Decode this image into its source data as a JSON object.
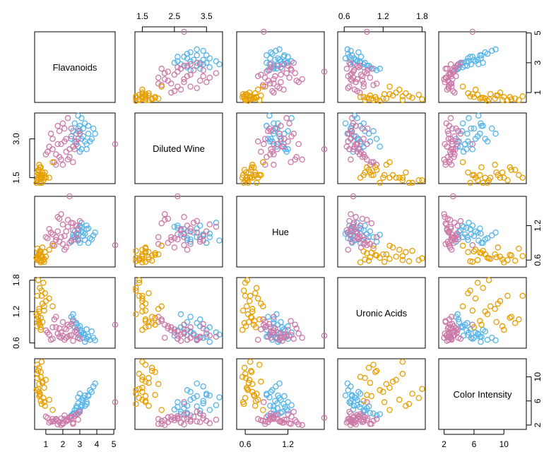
{
  "chart_data": {
    "type": "scatter",
    "variables": [
      "Flavanoids",
      "Diluted Wine",
      "Hue",
      "Uronic Acids",
      "Color Intensity"
    ],
    "ranges": [
      [
        0.34,
        5.08
      ],
      [
        1.27,
        4.0
      ],
      [
        0.48,
        1.71
      ],
      [
        0.5,
        1.85
      ],
      [
        1.28,
        13.0
      ]
    ],
    "ticks": [
      [
        1,
        2,
        3,
        4,
        5
      ],
      [
        1.5,
        2.5,
        3.5
      ],
      [
        0.6,
        1.2
      ],
      [
        0.6,
        1.2,
        1.8
      ],
      [
        2,
        6,
        10
      ]
    ],
    "tick_labels": [
      [
        "1",
        "2",
        "3",
        "4",
        "5"
      ],
      [
        "1.5",
        "2.5",
        "3.5"
      ],
      [
        "0.6",
        "1.2"
      ],
      [
        "0.6",
        "1.2",
        "1.8"
      ],
      [
        "2",
        "6",
        "10"
      ]
    ],
    "extra_labels": {
      "flav_right": [
        "1",
        "3",
        "5"
      ],
      "dilu_left": [
        "1.5",
        "3.0"
      ],
      "hue_right": [
        "0.6",
        "1.2"
      ]
    },
    "extra_ticks": {
      "flav_right": [
        1,
        3,
        5
      ],
      "dilu_left": [
        1.5,
        3.0
      ],
      "hue_right": [
        0.6,
        1.2
      ]
    },
    "series": [
      {
        "color": "#56B4E9",
        "values": [
          [
            2.9,
            3.4,
            1.05,
            0.7,
            5.6
          ],
          [
            3.1,
            3.0,
            1.1,
            0.8,
            6.2
          ],
          [
            3.3,
            2.9,
            0.95,
            0.75,
            5.2
          ],
          [
            2.7,
            3.6,
            1.0,
            0.9,
            4.5
          ],
          [
            3.5,
            3.2,
            1.15,
            0.72,
            6.8
          ],
          [
            2.8,
            2.8,
            1.05,
            0.95,
            4.8
          ],
          [
            3.0,
            3.5,
            0.9,
            0.85,
            7.2
          ],
          [
            3.4,
            2.6,
            1.2,
            0.68,
            5.8
          ],
          [
            2.6,
            3.3,
            1.0,
            1.05,
            3.9
          ],
          [
            3.2,
            3.1,
            1.08,
            0.78,
            6.5
          ],
          [
            3.6,
            2.9,
            0.98,
            0.66,
            7.8
          ],
          [
            2.9,
            2.7,
            1.12,
            0.9,
            4.2
          ],
          [
            3.8,
            3.4,
            1.03,
            0.7,
            8.4
          ],
          [
            3.1,
            3.8,
            1.25,
            0.8,
            5.3
          ],
          [
            2.5,
            3.0,
            0.92,
            1.1,
            3.6
          ],
          [
            3.3,
            3.6,
            1.06,
            0.62,
            6.9
          ],
          [
            2.8,
            3.2,
            1.0,
            0.98,
            5.1
          ],
          [
            3.0,
            2.5,
            1.18,
            0.74,
            4.6
          ],
          [
            3.7,
            3.0,
            0.96,
            0.82,
            7.5
          ],
          [
            2.7,
            2.9,
            1.1,
            1.0,
            4.0
          ],
          [
            3.2,
            3.4,
            1.02,
            0.7,
            6.0
          ],
          [
            3.4,
            2.8,
            1.14,
            0.86,
            5.5
          ],
          [
            2.9,
            3.9,
            0.94,
            0.76,
            6.6
          ],
          [
            3.9,
            3.2,
            1.08,
            0.65,
            8.9
          ],
          [
            3.0,
            3.3,
            1.2,
            0.92,
            4.4
          ],
          [
            2.6,
            2.7,
            1.04,
            1.15,
            3.8
          ],
          [
            3.5,
            3.5,
            0.9,
            0.72,
            7.0
          ],
          [
            3.1,
            2.6,
            1.16,
            0.84,
            5.0
          ]
        ]
      },
      {
        "color": "#CC79A7",
        "values": [
          [
            1.9,
            2.8,
            1.0,
            0.8,
            3.1
          ],
          [
            2.2,
            3.0,
            1.1,
            0.7,
            2.6
          ],
          [
            1.6,
            2.4,
            0.95,
            0.9,
            2.9
          ],
          [
            2.5,
            3.1,
            1.25,
            0.75,
            3.4
          ],
          [
            2.0,
            2.0,
            0.88,
            1.0,
            2.2
          ],
          [
            1.4,
            2.6,
            1.05,
            0.68,
            3.0
          ],
          [
            2.8,
            2.9,
            1.2,
            0.85,
            3.8
          ],
          [
            1.8,
            3.3,
            0.92,
            0.72,
            2.5
          ],
          [
            2.3,
            2.2,
            1.3,
            0.95,
            2.8
          ],
          [
            1.1,
            2.5,
            0.98,
            0.8,
            3.2
          ],
          [
            2.6,
            2.7,
            1.12,
            0.64,
            2.4
          ],
          [
            2.1,
            3.4,
            1.02,
            0.88,
            3.6
          ],
          [
            1.5,
            2.1,
            0.85,
            1.05,
            2.7
          ],
          [
            2.9,
            3.0,
            1.15,
            0.7,
            2.9
          ],
          [
            1.7,
            2.8,
            1.35,
            0.78,
            2.1
          ],
          [
            2.4,
            2.3,
            0.9,
            0.92,
            3.3
          ],
          [
            1.3,
            3.2,
            1.08,
            0.66,
            2.6
          ],
          [
            2.7,
            2.6,
            0.96,
            0.82,
            3.5
          ],
          [
            2.0,
            3.6,
            1.22,
            0.74,
            2.3
          ],
          [
            1.6,
            2.0,
            1.0,
            1.1,
            3.0
          ],
          [
            3.0,
            3.2,
            1.28,
            0.68,
            4.2
          ],
          [
            2.2,
            2.5,
            0.82,
            0.86,
            2.8
          ],
          [
            1.2,
            2.7,
            1.14,
            0.76,
            2.4
          ],
          [
            2.5,
            3.4,
            0.94,
            0.96,
            3.1
          ],
          [
            1.9,
            2.2,
            1.4,
            0.7,
            2.0
          ],
          [
            2.8,
            2.8,
            1.06,
            0.8,
            3.7
          ],
          [
            1.4,
            3.0,
            0.88,
            0.9,
            2.6
          ],
          [
            2.3,
            3.8,
            1.18,
            0.72,
            2.9
          ],
          [
            1.0,
            2.4,
            1.0,
            0.84,
            3.4
          ],
          [
            2.6,
            2.1,
            1.24,
            1.02,
            2.2
          ],
          [
            2.1,
            2.9,
            0.78,
            0.66,
            3.0
          ],
          [
            1.7,
            3.5,
            1.1,
            0.78,
            2.7
          ],
          [
            5.08,
            2.8,
            0.86,
            0.95,
            5.8
          ],
          [
            2.4,
            2.6,
            1.71,
            0.74,
            3.2
          ],
          [
            1.8,
            2.3,
            1.32,
            0.88,
            2.5
          ],
          [
            2.9,
            3.3,
            0.96,
            0.7,
            3.9
          ]
        ]
      },
      {
        "color": "#E69F00",
        "values": [
          [
            0.6,
            1.5,
            0.7,
            1.2,
            7.5
          ],
          [
            0.8,
            1.7,
            0.65,
            1.0,
            9.0
          ],
          [
            0.5,
            1.4,
            0.6,
            1.5,
            10.5
          ],
          [
            0.7,
            1.6,
            0.75,
            0.9,
            6.0
          ],
          [
            0.9,
            1.5,
            0.62,
            1.3,
            8.2
          ],
          [
            0.55,
            1.8,
            0.68,
            1.1,
            11.0
          ],
          [
            0.75,
            1.3,
            0.58,
            1.6,
            5.5
          ],
          [
            0.65,
            1.9,
            0.72,
            0.95,
            7.0
          ],
          [
            1.0,
            1.5,
            0.66,
            1.4,
            9.5
          ],
          [
            0.5,
            1.6,
            0.8,
            1.05,
            12.0
          ],
          [
            0.85,
            1.4,
            0.6,
            1.75,
            6.5
          ],
          [
            0.6,
            2.0,
            0.7,
            1.25,
            8.8
          ],
          [
            0.7,
            1.5,
            0.56,
            0.85,
            10.0
          ],
          [
            0.95,
            1.7,
            0.74,
            1.55,
            5.2
          ],
          [
            0.45,
            1.3,
            0.64,
            1.15,
            7.8
          ],
          [
            0.8,
            1.6,
            0.82,
            1.35,
            9.2
          ],
          [
            0.6,
            1.8,
            0.59,
            0.98,
            11.5
          ],
          [
            1.2,
            1.5,
            0.78,
            1.45,
            6.2
          ],
          [
            0.55,
            1.4,
            0.63,
            1.8,
            8.0
          ],
          [
            0.7,
            1.9,
            0.69,
            1.08,
            10.8
          ],
          [
            0.9,
            1.6,
            0.57,
            1.22,
            5.8
          ],
          [
            0.65,
            1.3,
            0.76,
            1.65,
            7.2
          ],
          [
            0.5,
            1.7,
            0.61,
            0.92,
            9.8
          ],
          [
            1.4,
            2.1,
            0.85,
            1.3,
            4.5
          ],
          [
            0.75,
            1.5,
            0.67,
            1.5,
            12.5
          ],
          [
            0.6,
            1.6,
            0.73,
            1.02,
            6.8
          ]
        ]
      }
    ]
  }
}
